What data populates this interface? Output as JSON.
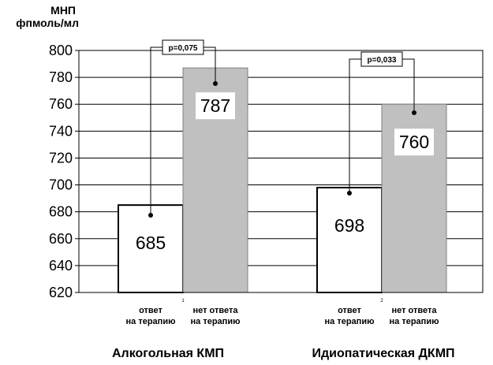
{
  "chart_data": {
    "type": "bar",
    "ylabel": {
      "name": "МНП",
      "unit": "фпмоль/мл"
    },
    "ylim": [
      620,
      800
    ],
    "yticks": [
      620,
      640,
      660,
      680,
      700,
      720,
      740,
      760,
      780,
      800
    ],
    "grid": true,
    "categories": [
      "Алкогольная КМП",
      "Идиопатическая ДКМП"
    ],
    "category_ticks": [
      "1",
      "2"
    ],
    "series": [
      {
        "label_lines": [
          "ответ",
          "на терапию"
        ],
        "values": [
          685,
          698
        ],
        "color": "#ffffff",
        "border": "#000000"
      },
      {
        "label_lines": [
          "нет ответа",
          "на терапию"
        ],
        "values": [
          787,
          760
        ],
        "color": "#c0c0c0",
        "border": "#808080"
      }
    ],
    "data_labels": true,
    "annotations": [
      {
        "text": "p=0,075",
        "category": 0
      },
      {
        "text": "p=0,033",
        "category": 1
      }
    ]
  }
}
